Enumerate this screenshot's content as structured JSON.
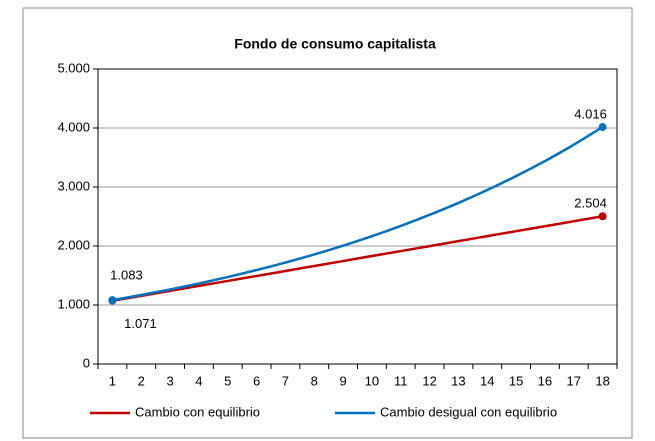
{
  "chart_data": {
    "type": "line",
    "title": "Fondo de consumo capitalista",
    "categories": [
      "1",
      "2",
      "3",
      "4",
      "5",
      "6",
      "7",
      "8",
      "9",
      "10",
      "11",
      "12",
      "13",
      "14",
      "15",
      "16",
      "17",
      "18"
    ],
    "series": [
      {
        "name": "Cambio con equilibrio",
        "color": "#c00000",
        "values": [
          1071,
          1155,
          1240,
          1324,
          1408,
          1492,
          1577,
          1661,
          1745,
          1830,
          1914,
          1998,
          2083,
          2167,
          2251,
          2335,
          2420,
          2504
        ],
        "value_labels": [
          "1.071",
          null,
          null,
          null,
          null,
          null,
          null,
          null,
          null,
          null,
          null,
          null,
          null,
          null,
          null,
          null,
          null,
          "2.504"
        ]
      },
      {
        "name": "Cambio desigual con equilibrio",
        "color": "#0070c0",
        "values": [
          1083,
          1170,
          1263,
          1365,
          1474,
          1592,
          1720,
          1857,
          2006,
          2167,
          2340,
          2528,
          2730,
          2949,
          3185,
          3440,
          3716,
          4016
        ],
        "value_labels": [
          "1.083",
          null,
          null,
          null,
          null,
          null,
          null,
          null,
          null,
          null,
          null,
          null,
          null,
          null,
          null,
          null,
          null,
          "4.016"
        ]
      }
    ],
    "ylim": [
      0,
      5000
    ],
    "yticks": [
      0,
      {
        "value": 1000,
        "label": "1.000"
      },
      {
        "value": 2000,
        "label": "2.000"
      },
      {
        "value": 3000,
        "label": "3.000"
      },
      {
        "value": 4000,
        "label": "4.000"
      },
      {
        "value": 5000,
        "label": "5.000"
      }
    ],
    "grid": true,
    "legend": "bottom"
  }
}
